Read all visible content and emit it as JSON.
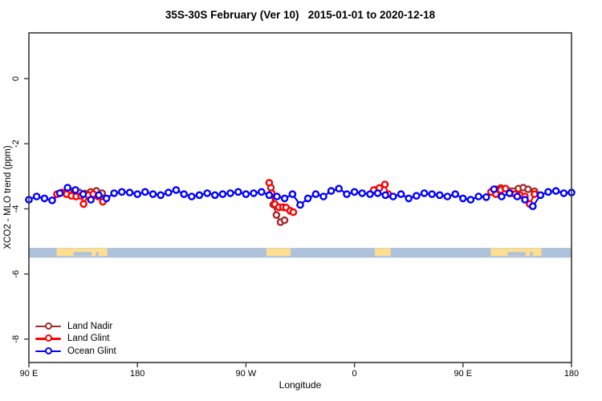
{
  "title": "35S-30S February (Ver 10)   2015-01-01 to 2020-12-18",
  "axes": {
    "x_label": "Longitude",
    "x_tick_labels": [
      "90 E",
      "180",
      "90 W",
      "0",
      "90 E",
      "180"
    ],
    "x_tick_positions_deg": [
      0,
      90,
      180,
      270,
      360,
      450
    ],
    "x_unit_note": "axis position in degrees east of 90E; axis wraps 90E>180>90W>0>90E>180",
    "y_label": "XCO2 - MLO trend (ppm)",
    "y_tick_labels": [
      "0",
      "-2",
      "-4",
      "-6",
      "-8"
    ],
    "y_tick_values": [
      0,
      -2,
      -4,
      -6,
      -8
    ],
    "y_range_ppm": [
      -8.72,
      1.38
    ],
    "x_range_deg": [
      0,
      450
    ]
  },
  "legend": {
    "items": [
      {
        "label": "Land Nadir",
        "color": "#A52A2A"
      },
      {
        "label": "Land Glint",
        "color": "#FF0000"
      },
      {
        "label": "Ocean Glint",
        "color": "#0000FF"
      }
    ]
  },
  "chart_data": {
    "type": "line",
    "title": "35S-30S February (Ver 10)   2015-01-01 to 2020-12-18",
    "xlabel": "Longitude",
    "ylabel": "XCO2 - MLO trend (ppm)",
    "marker": "open-circle",
    "x_unit": "degrees east of 90E along axis (0=90E, 90=180, 180=90W, 270=0, 360=90E, 450=180)",
    "series": [
      {
        "name": "Land Nadir",
        "color": "#A52A2A",
        "clusters": [
          [
            [
              37.3,
              -3.45
            ],
            [
              42,
              -3.5
            ],
            [
              46.7,
              -3.53
            ],
            [
              51.3,
              -3.48
            ],
            [
              56,
              -3.45
            ],
            [
              60.7,
              -3.52
            ]
          ],
          [
            [
              200.7,
              -3.35
            ],
            [
              202.7,
              -3.87
            ],
            [
              205.3,
              -4.19
            ],
            [
              208.7,
              -4.41
            ],
            [
              212,
              -4.35
            ]
          ],
          [
            [
              287.3,
              -3.42
            ]
          ],
          [
            [
              387.3,
              -3.4
            ],
            [
              391.3,
              -3.36
            ],
            [
              406,
              -3.38
            ],
            [
              410,
              -3.35
            ],
            [
              414,
              -3.4
            ],
            [
              419.3,
              -3.46
            ]
          ]
        ]
      },
      {
        "name": "Land Glint",
        "color": "#FF0000",
        "clusters": [
          [
            [
              23.3,
              -3.55
            ],
            [
              27.3,
              -3.5
            ],
            [
              31.3,
              -3.55
            ],
            [
              35.3,
              -3.6
            ],
            [
              39.3,
              -3.62
            ],
            [
              43.3,
              -3.6
            ],
            [
              45.3,
              -3.85
            ],
            [
              49.3,
              -3.58
            ],
            [
              53.3,
              -3.55
            ],
            [
              57.3,
              -3.62
            ],
            [
              61.3,
              -3.78
            ]
          ],
          [
            [
              199.3,
              -3.2
            ],
            [
              201.3,
              -3.52
            ],
            [
              204,
              -3.86
            ],
            [
              207.3,
              -3.95
            ],
            [
              210.7,
              -3.95
            ],
            [
              213.3,
              -3.96
            ],
            [
              216.7,
              -4.06
            ],
            [
              219.3,
              -4.1
            ]
          ],
          [
            [
              286,
              -3.42
            ],
            [
              290.7,
              -3.36
            ],
            [
              295.3,
              -3.25
            ],
            [
              298,
              -3.55
            ]
          ],
          [
            [
              383.3,
              -3.48
            ],
            [
              387.3,
              -3.55
            ],
            [
              391.3,
              -3.42
            ],
            [
              395.3,
              -3.38
            ],
            [
              399.3,
              -3.52
            ],
            [
              403.3,
              -3.55
            ],
            [
              407.3,
              -3.58
            ],
            [
              411.3,
              -3.62
            ],
            [
              415.3,
              -3.85
            ],
            [
              419.3,
              -3.55
            ]
          ]
        ]
      },
      {
        "name": "Ocean Glint",
        "color": "#0000FF",
        "clusters": [
          [
            [
              0,
              -3.72
            ],
            [
              6.4,
              -3.62
            ],
            [
              12.9,
              -3.68
            ],
            [
              19.3,
              -3.74
            ],
            [
              25.7,
              -3.52
            ],
            [
              32.1,
              -3.35
            ],
            [
              38.6,
              -3.42
            ],
            [
              45,
              -3.55
            ],
            [
              51.4,
              -3.72
            ],
            [
              57.9,
              -3.58
            ],
            [
              64.3,
              -3.68
            ],
            [
              70.7,
              -3.52
            ],
            [
              77.1,
              -3.48
            ],
            [
              83.6,
              -3.5
            ],
            [
              90,
              -3.55
            ],
            [
              96.4,
              -3.48
            ],
            [
              102.9,
              -3.55
            ],
            [
              109.3,
              -3.58
            ],
            [
              115.7,
              -3.5
            ],
            [
              122.1,
              -3.42
            ],
            [
              128.6,
              -3.55
            ],
            [
              135,
              -3.62
            ],
            [
              141.4,
              -3.58
            ],
            [
              147.9,
              -3.52
            ],
            [
              154.3,
              -3.58
            ],
            [
              160.7,
              -3.55
            ],
            [
              167.1,
              -3.52
            ],
            [
              173.6,
              -3.48
            ],
            [
              180,
              -3.55
            ],
            [
              186.4,
              -3.52
            ],
            [
              192.9,
              -3.48
            ],
            [
              199.3,
              -3.58
            ],
            [
              205.7,
              -3.62
            ],
            [
              212.1,
              -3.68
            ],
            [
              218.6,
              -3.55
            ],
            [
              225,
              -3.88
            ],
            [
              231.4,
              -3.68
            ],
            [
              237.9,
              -3.55
            ],
            [
              244.3,
              -3.62
            ],
            [
              250.7,
              -3.45
            ],
            [
              257.1,
              -3.38
            ],
            [
              263.6,
              -3.55
            ],
            [
              270,
              -3.48
            ],
            [
              276.4,
              -3.52
            ],
            [
              282.9,
              -3.55
            ],
            [
              289.3,
              -3.52
            ],
            [
              295.7,
              -3.58
            ],
            [
              302.1,
              -3.62
            ],
            [
              308.6,
              -3.55
            ],
            [
              315,
              -3.68
            ],
            [
              321.4,
              -3.6
            ],
            [
              327.9,
              -3.52
            ],
            [
              334.3,
              -3.55
            ],
            [
              340.7,
              -3.58
            ],
            [
              347.1,
              -3.62
            ],
            [
              353.6,
              -3.55
            ],
            [
              360,
              -3.68
            ],
            [
              366.4,
              -3.72
            ],
            [
              372.9,
              -3.62
            ],
            [
              379.3,
              -3.64
            ],
            [
              385.7,
              -3.4
            ],
            [
              392.1,
              -3.62
            ],
            [
              398.6,
              -3.52
            ],
            [
              405,
              -3.62
            ],
            [
              411.4,
              -3.72
            ],
            [
              417.9,
              -3.92
            ],
            [
              424.3,
              -3.58
            ],
            [
              430.7,
              -3.48
            ],
            [
              437.1,
              -3.45
            ],
            [
              443.6,
              -3.52
            ],
            [
              450,
              -3.5
            ]
          ]
        ]
      }
    ],
    "map_strip": {
      "description": "35S-30S latitude band strip map",
      "top_ppm": -5.2,
      "bottom_ppm": -5.5,
      "ocean_color": "#AFC2DC",
      "land_color": "#FFDF8E",
      "land_segments_deg": [
        [
          23,
          65
        ],
        [
          197,
          217
        ],
        [
          287,
          300
        ],
        [
          383,
          425
        ]
      ],
      "coast_notches_deg": [
        [
          37,
          52
        ],
        [
          55.5,
          58
        ],
        [
          397,
          412
        ],
        [
          415.5,
          418
        ]
      ]
    },
    "legend_position": "bottom-left",
    "grid": false
  }
}
